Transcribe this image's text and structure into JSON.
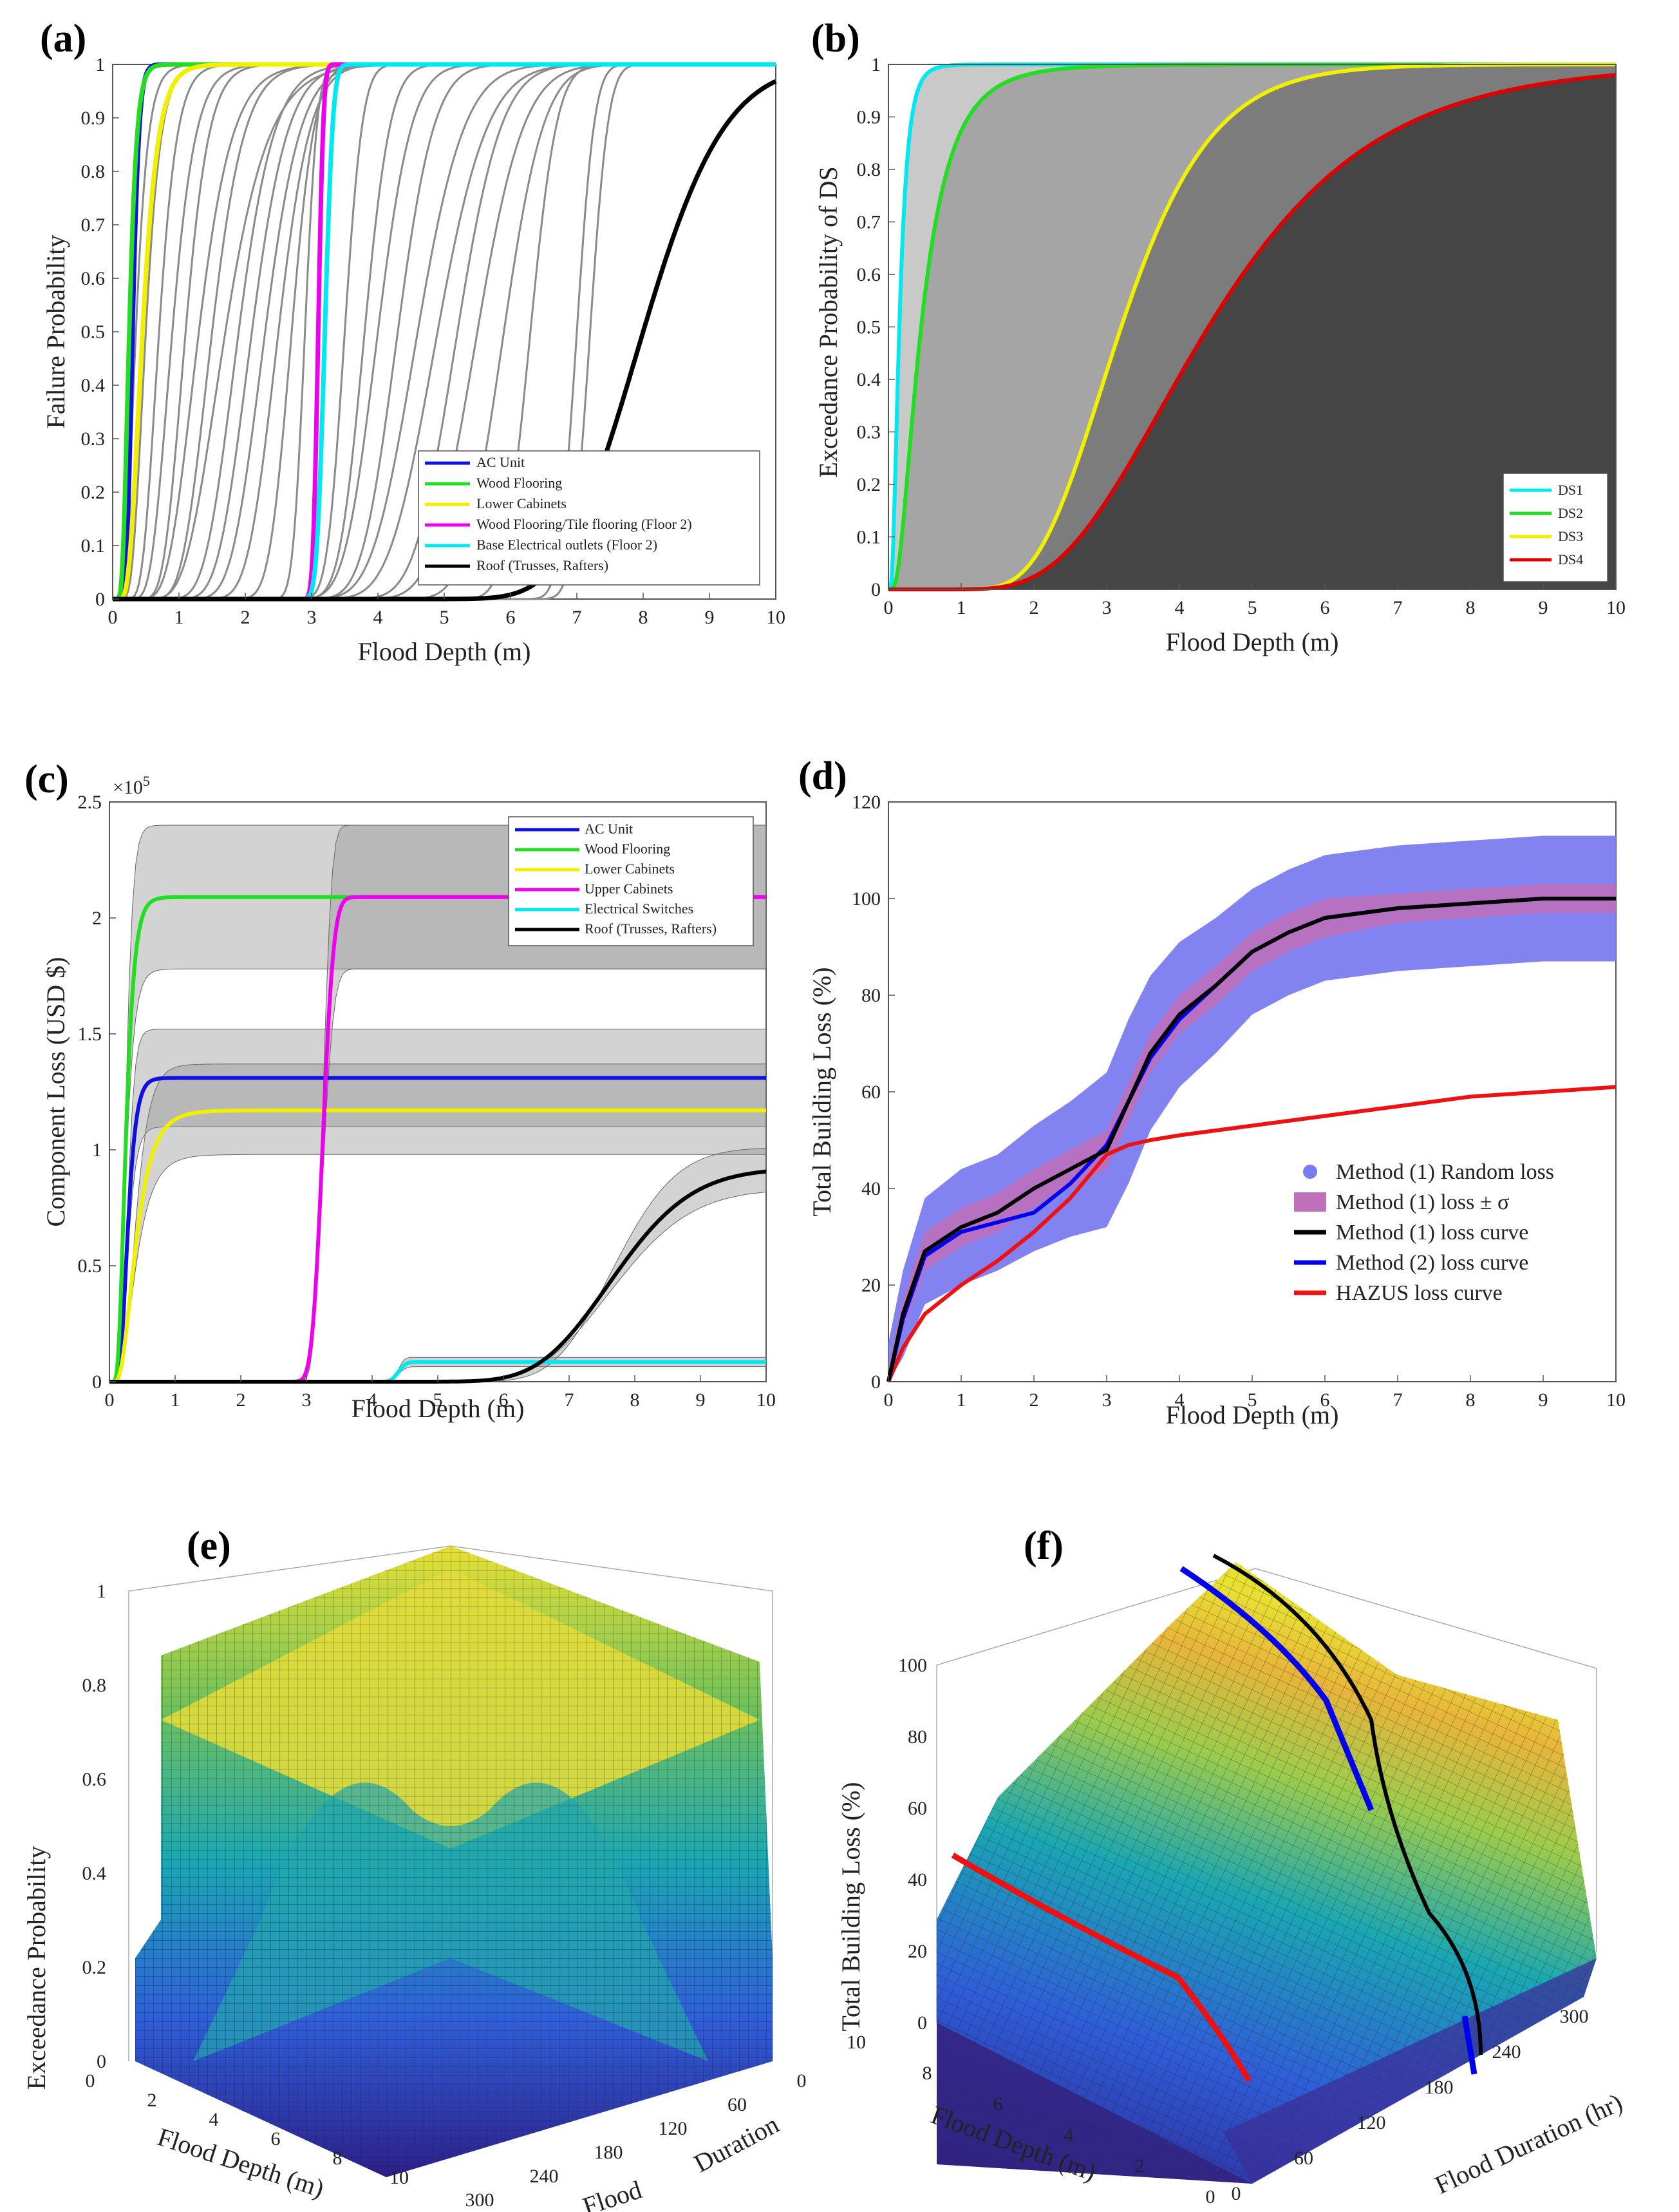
{
  "panels": {
    "a": {
      "label": "(a)",
      "xlabel": "Flood Depth (m)",
      "ylabel": "Failure Probability",
      "legend": [
        {
          "name": "AC Unit",
          "color": "#1010e0"
        },
        {
          "name": "Wood Flooring",
          "color": "#22dd22"
        },
        {
          "name": "Lower Cabinets",
          "color": "#f0f000"
        },
        {
          "name": "Wood Flooring/Tile flooring (Floor 2)",
          "color": "#ee00ee"
        },
        {
          "name": "Base Electrical outlets (Floor 2)",
          "color": "#00e8f0"
        },
        {
          "name": "Roof (Trusses, Rafters)",
          "color": "#000000"
        }
      ]
    },
    "b": {
      "label": "(b)",
      "xlabel": "Flood Depth (m)",
      "ylabel": "Exceedance Probability of DS",
      "legend": [
        {
          "name": "DS1",
          "color": "#00e8f0"
        },
        {
          "name": "DS2",
          "color": "#22dd22"
        },
        {
          "name": "DS3",
          "color": "#f0f000"
        },
        {
          "name": "DS4",
          "color": "#e00000"
        }
      ]
    },
    "c": {
      "label": "(c)",
      "xlabel": "Flood Depth (m)",
      "ylabel": "Component Loss (USD $)",
      "exponent": "×10",
      "exponent_power": "5",
      "legend": [
        {
          "name": "AC Unit",
          "color": "#1010e0"
        },
        {
          "name": "Wood Flooring",
          "color": "#22dd22"
        },
        {
          "name": "Lower Cabinets",
          "color": "#f0f000"
        },
        {
          "name": "Upper Cabinets",
          "color": "#ee00ee"
        },
        {
          "name": "Electrical Switches",
          "color": "#00e8f0"
        },
        {
          "name": "Roof (Trusses, Rafters)",
          "color": "#000000"
        }
      ]
    },
    "d": {
      "label": "(d)",
      "xlabel": "Flood Depth (m)",
      "ylabel": "Total Building Loss (%)",
      "legend": [
        {
          "name": "Method (1) Random loss",
          "color": "#7b7bf0"
        },
        {
          "name": "Method (1) loss ± σ",
          "color": "#c070b8"
        },
        {
          "name": "Method (1) loss curve",
          "color": "#000000"
        },
        {
          "name": "Method (2) loss curve",
          "color": "#0000ee"
        },
        {
          "name": "HAZUS loss curve",
          "color": "#ee1111"
        }
      ]
    },
    "e": {
      "label": "(e)",
      "zlabel": "Exceedance Probability",
      "xlabel": "Flood Depth (m)",
      "ylabel1": "Flood",
      "ylabel2": "Duration",
      "zticks": [
        "0",
        "0.2",
        "0.4",
        "0.6",
        "0.8",
        "1"
      ],
      "xticks": [
        "0",
        "2",
        "4",
        "6",
        "8",
        "10"
      ],
      "yticks": [
        "300",
        "240",
        "180",
        "120",
        "60",
        "0"
      ]
    },
    "f": {
      "label": "(f)",
      "zlabel": "Total Building Loss (%)",
      "xlabel": "Flood Depth (m)",
      "ylabel": "Flood Duration (hr)",
      "zticks": [
        "0",
        "20",
        "40",
        "60",
        "80",
        "100"
      ],
      "xticks": [
        "10",
        "8",
        "6",
        "4",
        "2",
        "0"
      ],
      "yticks": [
        "0",
        "60",
        "120",
        "180",
        "240",
        "300"
      ]
    }
  },
  "chart_data": [
    {
      "id": "a",
      "type": "line",
      "xlim": [
        0,
        10
      ],
      "ylim": [
        0,
        1
      ],
      "xticks": [
        0,
        1,
        2,
        3,
        4,
        5,
        6,
        7,
        8,
        9,
        10
      ],
      "yticks": [
        0,
        0.1,
        0.2,
        0.3,
        0.4,
        0.5,
        0.6,
        0.7,
        0.8,
        0.9,
        1
      ],
      "series": [
        {
          "name": "AC Unit",
          "median": 0.3,
          "beta": 0.25
        },
        {
          "name": "Wood Flooring",
          "median": 0.25,
          "beta": 0.35
        },
        {
          "name": "Lower Cabinets",
          "median": 0.45,
          "beta": 0.4
        },
        {
          "name": "Wood Flooring/Tile flooring (Floor 2)",
          "median": 3.1,
          "beta": 0.02
        },
        {
          "name": "Base Electrical outlets (Floor 2)",
          "median": 3.2,
          "beta": 0.03
        },
        {
          "name": "Roof (Trusses, Rafters)",
          "median": 8.0,
          "beta": 0.12
        }
      ],
      "background_curves": [
        {
          "median": 0.35,
          "beta": 0.4
        },
        {
          "median": 0.5,
          "beta": 0.35
        },
        {
          "median": 0.7,
          "beta": 0.3
        },
        {
          "median": 0.9,
          "beta": 0.3
        },
        {
          "median": 1.1,
          "beta": 0.25
        },
        {
          "median": 1.3,
          "beta": 0.3
        },
        {
          "median": 1.5,
          "beta": 0.25
        },
        {
          "median": 1.7,
          "beta": 0.3
        },
        {
          "median": 1.9,
          "beta": 0.22
        },
        {
          "median": 2.1,
          "beta": 0.2
        },
        {
          "median": 2.3,
          "beta": 0.18
        },
        {
          "median": 2.5,
          "beta": 0.15
        },
        {
          "median": 2.7,
          "beta": 0.1
        },
        {
          "median": 2.9,
          "beta": 0.05
        },
        {
          "median": 3.5,
          "beta": 0.06
        },
        {
          "median": 3.8,
          "beta": 0.08
        },
        {
          "median": 4.0,
          "beta": 0.1
        },
        {
          "median": 4.3,
          "beta": 0.1
        },
        {
          "median": 4.6,
          "beta": 0.12
        },
        {
          "median": 4.9,
          "beta": 0.12
        },
        {
          "median": 5.2,
          "beta": 0.1
        },
        {
          "median": 5.5,
          "beta": 0.1
        },
        {
          "median": 5.9,
          "beta": 0.08
        },
        {
          "median": 6.3,
          "beta": 0.05
        },
        {
          "median": 7.0,
          "beta": 0.03
        },
        {
          "median": 7.2,
          "beta": 0.03
        }
      ]
    },
    {
      "id": "b",
      "type": "area",
      "xlim": [
        0,
        10
      ],
      "ylim": [
        0,
        1
      ],
      "xticks": [
        0,
        1,
        2,
        3,
        4,
        5,
        6,
        7,
        8,
        9,
        10
      ],
      "yticks": [
        0,
        0.1,
        0.2,
        0.3,
        0.4,
        0.5,
        0.6,
        0.7,
        0.8,
        0.9,
        1
      ],
      "series": [
        {
          "name": "DS1",
          "median": 0.15,
          "beta": 0.6
        },
        {
          "name": "DS2",
          "median": 0.45,
          "beta": 0.7
        },
        {
          "name": "DS3",
          "median": 3.2,
          "beta": 0.3
        },
        {
          "name": "DS4",
          "median": 4.4,
          "beta": 0.4
        }
      ]
    },
    {
      "id": "c",
      "type": "line",
      "xlim": [
        0,
        10
      ],
      "ylim": [
        0,
        250000
      ],
      "xticks": [
        0,
        1,
        2,
        3,
        4,
        5,
        6,
        7,
        8,
        9,
        10
      ],
      "yticks": [
        0,
        50000,
        100000,
        150000,
        200000,
        250000
      ],
      "ytick_labels": [
        "0",
        "0.5",
        "1",
        "1.5",
        "2",
        "2.5"
      ],
      "series": [
        {
          "name": "AC Unit",
          "plateau": 131000,
          "band": [
            110000,
            152000
          ],
          "median": 0.28,
          "beta": 0.35
        },
        {
          "name": "Wood Flooring",
          "plateau": 209000,
          "band": [
            178000,
            240000
          ],
          "median": 0.25,
          "beta": 0.4
        },
        {
          "name": "Lower Cabinets",
          "plateau": 117000,
          "band": [
            98000,
            137000
          ],
          "median": 0.4,
          "beta": 0.5
        },
        {
          "name": "Upper Cabinets",
          "plateau": 209000,
          "band": [
            178000,
            240000
          ],
          "median": 3.25,
          "beta": 0.04
        },
        {
          "name": "Electrical Switches",
          "plateau": 8500,
          "band": [
            6500,
            10500
          ],
          "median": 4.4,
          "beta": 0.02
        },
        {
          "name": "Roof (Trusses, Rafters)",
          "plateau": 92000,
          "band": [
            83000,
            101000
          ],
          "median": 7.7,
          "beta": 0.12
        }
      ]
    },
    {
      "id": "d",
      "type": "scatter",
      "xlim": [
        0,
        10
      ],
      "ylim": [
        0,
        120
      ],
      "xticks": [
        0,
        1,
        2,
        3,
        4,
        5,
        6,
        7,
        8,
        9,
        10
      ],
      "yticks": [
        0,
        20,
        40,
        60,
        80,
        100,
        120
      ],
      "x": [
        0,
        0.2,
        0.5,
        1,
        1.5,
        2,
        2.5,
        3,
        3.3,
        3.6,
        4,
        4.5,
        5,
        5.5,
        6,
        7,
        8,
        9,
        10
      ],
      "series": [
        {
          "name": "Method (1) loss curve",
          "values": [
            0,
            14,
            27,
            32,
            35,
            40,
            44,
            48,
            58,
            68,
            76,
            82,
            89,
            93,
            96,
            98,
            99,
            100,
            100
          ]
        },
        {
          "name": "Method (2) loss curve",
          "values": [
            0,
            13,
            26,
            31,
            33,
            35,
            41,
            49,
            58,
            67,
            75,
            82,
            89,
            93,
            96,
            98,
            99,
            100,
            100
          ]
        },
        {
          "name": "HAZUS loss curve",
          "values": [
            0,
            7,
            14,
            20,
            25,
            31,
            38,
            47,
            49,
            50,
            51,
            52,
            53,
            54,
            55,
            57,
            59,
            60,
            61
          ]
        },
        {
          "name": "Method (1) loss ± σ",
          "values": [
            3,
            3,
            4,
            4,
            4,
            4,
            4,
            4,
            4,
            4,
            4,
            4,
            4,
            4,
            4,
            3,
            3,
            3,
            3
          ]
        },
        {
          "name": "Method (1) Random loss",
          "values": [
            8,
            9,
            11,
            12,
            12,
            13,
            14,
            16,
            17,
            16,
            15,
            14,
            13,
            13,
            13,
            13,
            13,
            13,
            13
          ]
        }
      ]
    },
    {
      "id": "e",
      "type": "surface",
      "xlim": [
        0,
        10
      ],
      "ylim": [
        0,
        300
      ],
      "zlim": [
        0,
        1
      ],
      "xlabel": "Flood Depth (m)",
      "ylabel": "Flood Duration",
      "zlabel": "Exceedance Probability"
    },
    {
      "id": "f",
      "type": "surface",
      "xlim": [
        0,
        10
      ],
      "ylim": [
        0,
        300
      ],
      "zlim": [
        0,
        100
      ],
      "xlabel": "Flood Depth (m)",
      "ylabel": "Flood Duration (hr)",
      "zlabel": "Total Building Loss (%)"
    }
  ]
}
